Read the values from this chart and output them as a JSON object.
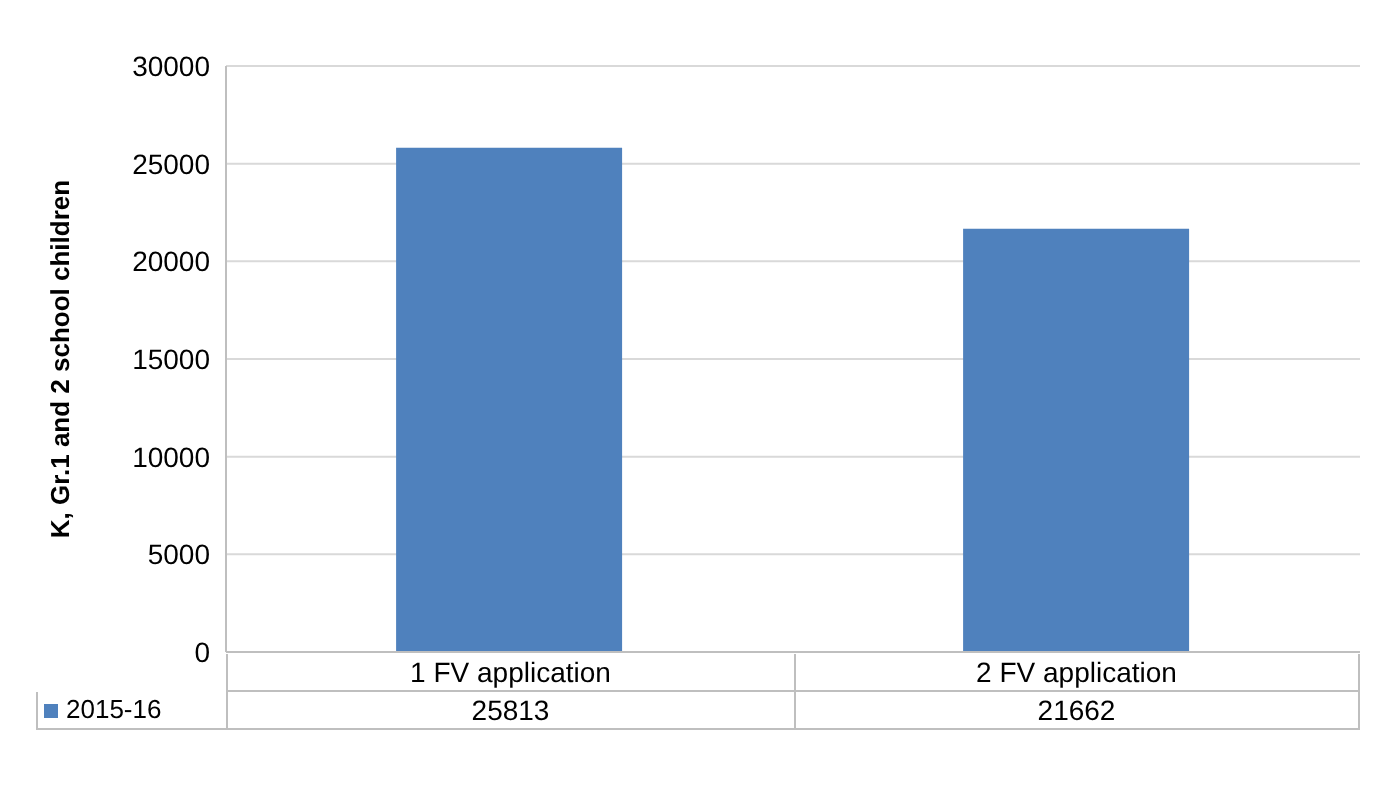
{
  "chart_data": {
    "type": "bar",
    "ylabel": "K, Gr.1 and 2 school children",
    "categories": [
      "1 FV application",
      "2 FV application"
    ],
    "series": [
      {
        "name": "2015-16",
        "color": "#4f81bd",
        "values": [
          25813,
          21662
        ]
      }
    ],
    "ylim": [
      0,
      30000
    ],
    "yticks": [
      0,
      5000,
      10000,
      15000,
      20000,
      25000,
      30000
    ],
    "grid": "y",
    "legend": "bottom",
    "data_labels": true
  }
}
